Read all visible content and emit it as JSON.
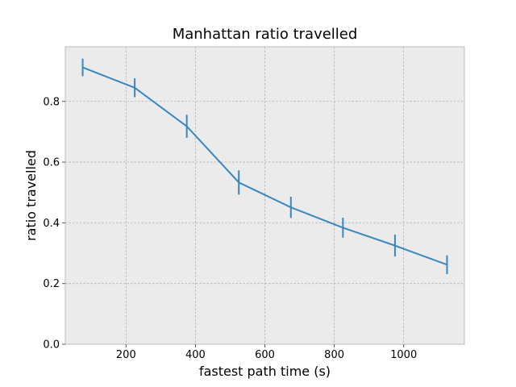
{
  "chart_data": {
    "type": "line",
    "title": "Manhattan ratio travelled",
    "xlabel": "fastest path time (s)",
    "ylabel": "ratio travelled",
    "xlim": [
      25,
      1175
    ],
    "ylim": [
      0,
      0.98
    ],
    "xticks": [
      200,
      400,
      600,
      800,
      1000
    ],
    "yticks": [
      0.0,
      0.2,
      0.4,
      0.6,
      0.8
    ],
    "grid": true,
    "colors": {
      "background": "#ebebeb",
      "grid": "#b0b0b0",
      "line": "#3a87bf",
      "frame": "#bdbdbd"
    },
    "series": [
      {
        "x": [
          75,
          225,
          375,
          525,
          675,
          825,
          975,
          1125
        ],
        "y": [
          0.912,
          0.845,
          0.718,
          0.533,
          0.451,
          0.384,
          0.325,
          0.262
        ],
        "error": [
          0.029,
          0.031,
          0.038,
          0.04,
          0.035,
          0.033,
          0.036,
          0.031
        ]
      }
    ]
  }
}
